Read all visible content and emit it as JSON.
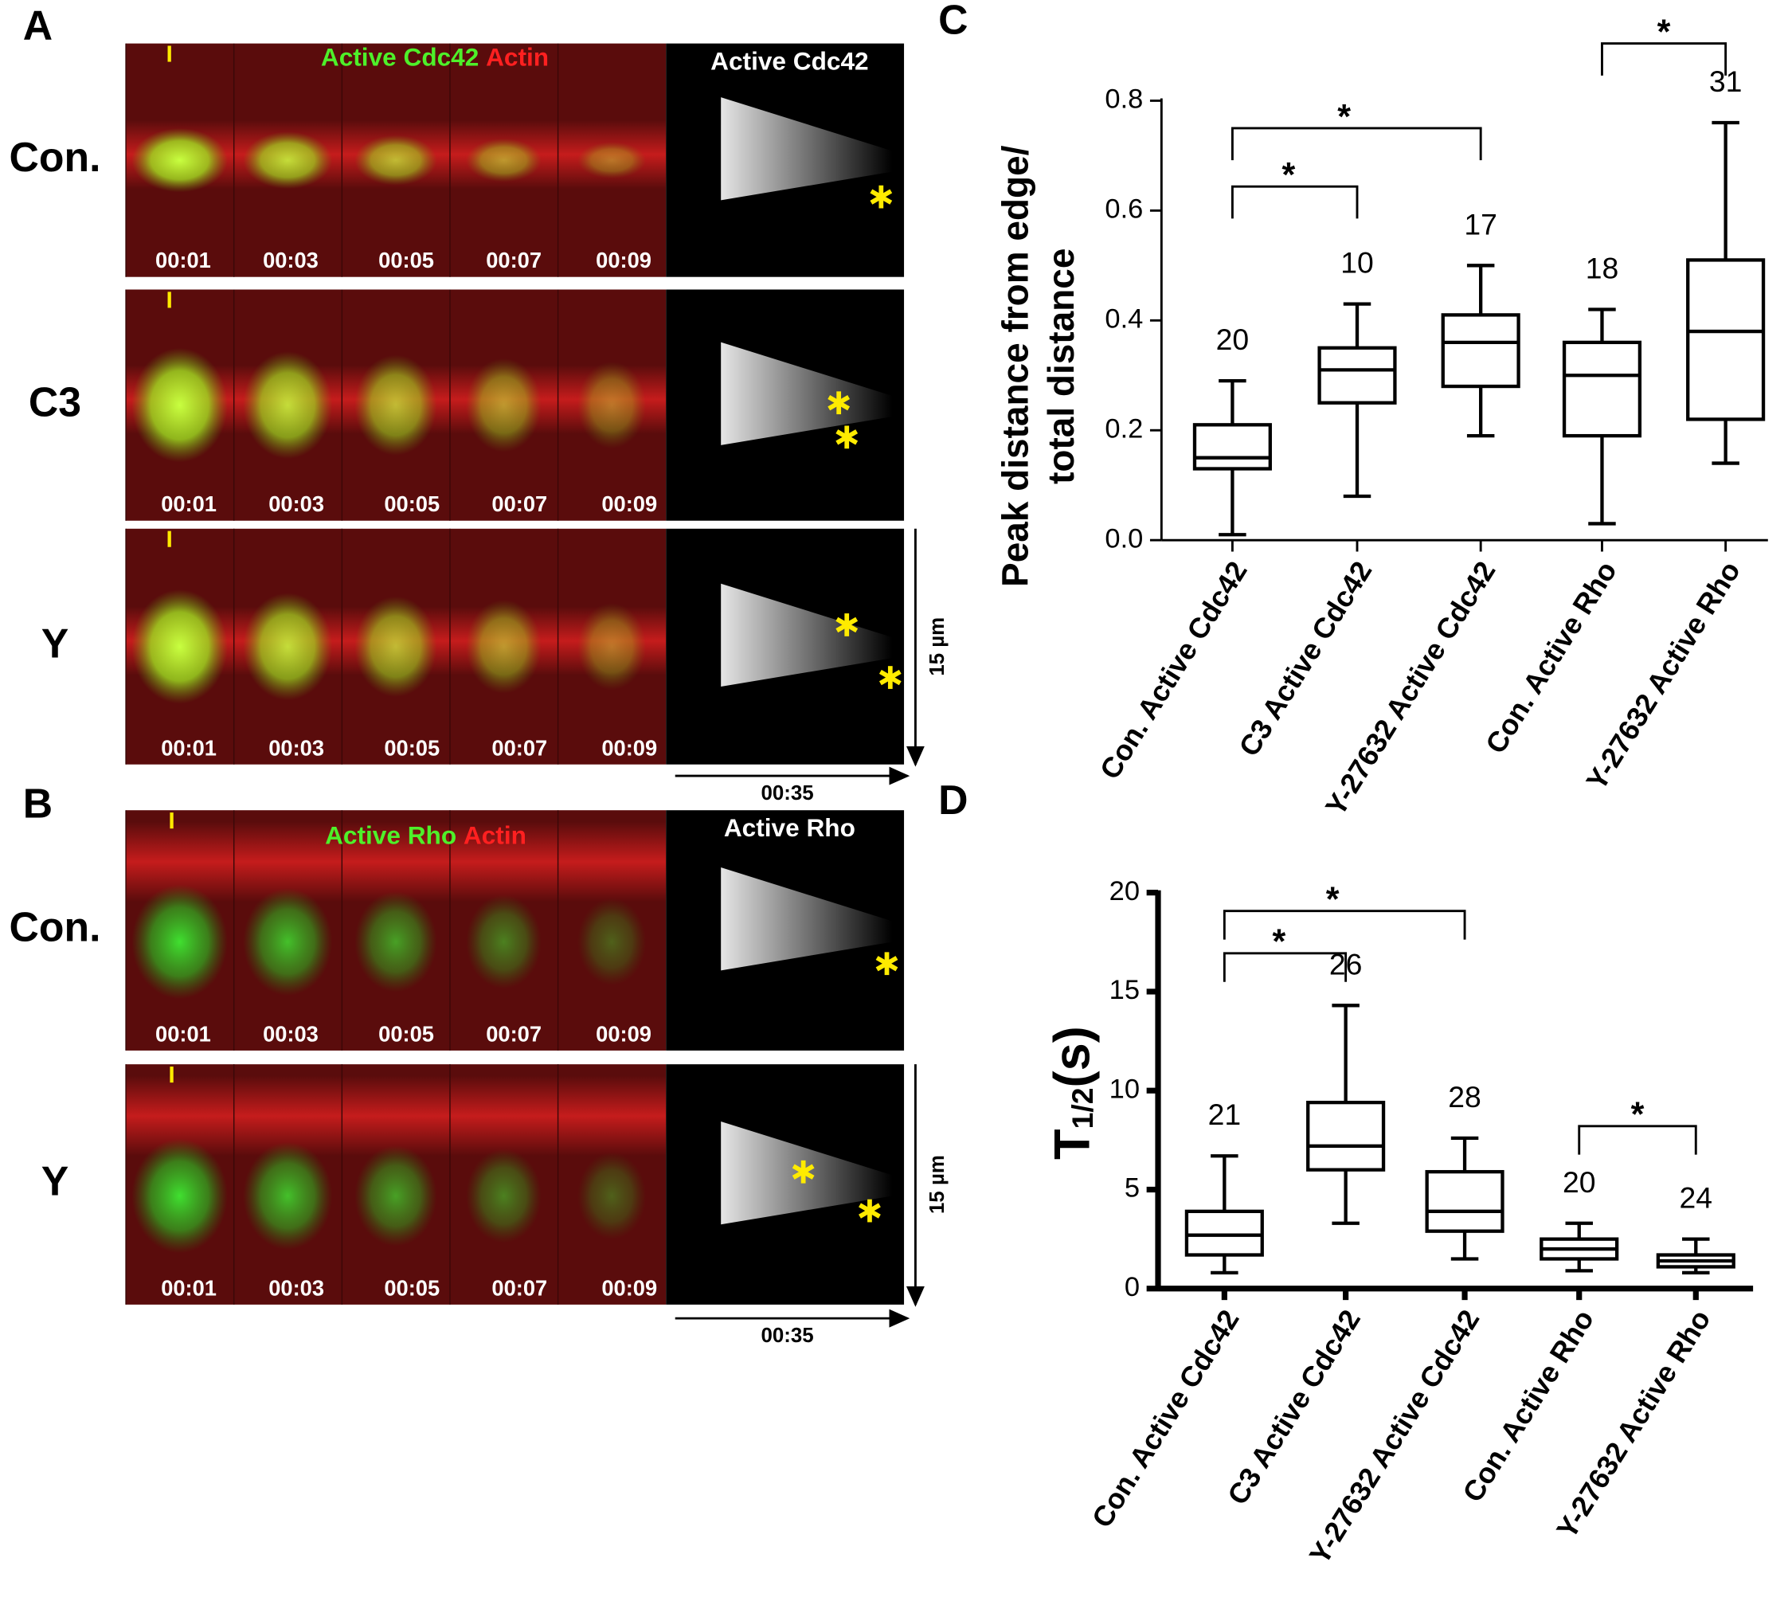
{
  "panels": [
    {
      "letter": "A",
      "title_green": "Active Cdc42",
      "title_red": "Actin",
      "kymo_title": "Active Cdc42",
      "rows": [
        {
          "label": "Con.",
          "times": [
            "00:01",
            "00:03",
            "00:05",
            "00:07",
            "00:09"
          ]
        },
        {
          "label": "C3",
          "times": [
            "00:01",
            "00:03",
            "00:05",
            "00:07",
            "00:09"
          ]
        },
        {
          "label": "Y",
          "times": [
            "00:01",
            "00:03",
            "00:05",
            "00:07",
            "00:09"
          ]
        }
      ],
      "scale_space": "15 µm",
      "scale_time": "00:35"
    },
    {
      "letter": "B",
      "title_green": "Active Rho",
      "title_red": "Actin",
      "kymo_title": "Active Rho",
      "rows": [
        {
          "label": "Con.",
          "times": [
            "00:01",
            "00:03",
            "00:05",
            "00:07",
            "00:09"
          ]
        },
        {
          "label": "Y",
          "times": [
            "00:01",
            "00:03",
            "00:05",
            "00:07",
            "00:09"
          ]
        }
      ],
      "scale_space": "15 µm",
      "scale_time": "00:35"
    }
  ],
  "chart_data": [
    {
      "type": "box",
      "label": "C",
      "ylabel": [
        "Peak distance from edge/",
        "total distance"
      ],
      "categories": [
        "Con. Active Cdc42",
        "C3 Active Cdc42",
        "Y-27632 Active Cdc42",
        "Con. Active Rho",
        "Y-27632 Active Rho"
      ],
      "min": [
        0.01,
        0.08,
        0.19,
        0.03,
        0.14
      ],
      "q1": [
        0.13,
        0.25,
        0.28,
        0.19,
        0.22
      ],
      "median": [
        0.15,
        0.31,
        0.36,
        0.3,
        0.38
      ],
      "q3": [
        0.21,
        0.35,
        0.41,
        0.36,
        0.51
      ],
      "max": [
        0.29,
        0.43,
        0.5,
        0.42,
        0.76
      ],
      "n": [
        20,
        10,
        17,
        18,
        31
      ],
      "significance": [
        {
          "pair": [
            0,
            1
          ],
          "label": "*"
        },
        {
          "pair": [
            0,
            2
          ],
          "label": "*"
        },
        {
          "pair": [
            3,
            4
          ],
          "label": "*"
        }
      ],
      "ylim": [
        0,
        0.8
      ],
      "yticks": [
        {
          "value": 0,
          "label": "0.0"
        },
        0.2,
        0.4,
        0.6,
        0.8
      ]
    },
    {
      "type": "box",
      "label": "D",
      "ylabel": {
        "main": "T",
        "sub": "1/2",
        "unit": "(s)"
      },
      "categories": [
        "Con. Active Cdc42",
        "C3 Active Cdc42",
        "Y-27632 Active Cdc42",
        "Con. Active Rho",
        "Y-27632 Active Rho"
      ],
      "min": [
        0.8,
        3.3,
        1.5,
        0.9,
        0.8
      ],
      "q1": [
        1.7,
        6.0,
        2.9,
        1.5,
        1.1
      ],
      "median": [
        2.7,
        7.2,
        3.9,
        2.0,
        1.4
      ],
      "q3": [
        3.9,
        9.4,
        5.9,
        2.5,
        1.7
      ],
      "max": [
        6.7,
        14.3,
        7.6,
        3.3,
        2.5
      ],
      "n": [
        21,
        26,
        28,
        20,
        24
      ],
      "significance": [
        {
          "pair": [
            0,
            1
          ],
          "label": "*"
        },
        {
          "pair": [
            0,
            2
          ],
          "label": "*"
        },
        {
          "pair": [
            3,
            4
          ],
          "label": "*"
        }
      ],
      "ylim": [
        0,
        20
      ],
      "yticks": [
        0,
        5,
        10,
        15,
        20
      ]
    }
  ]
}
